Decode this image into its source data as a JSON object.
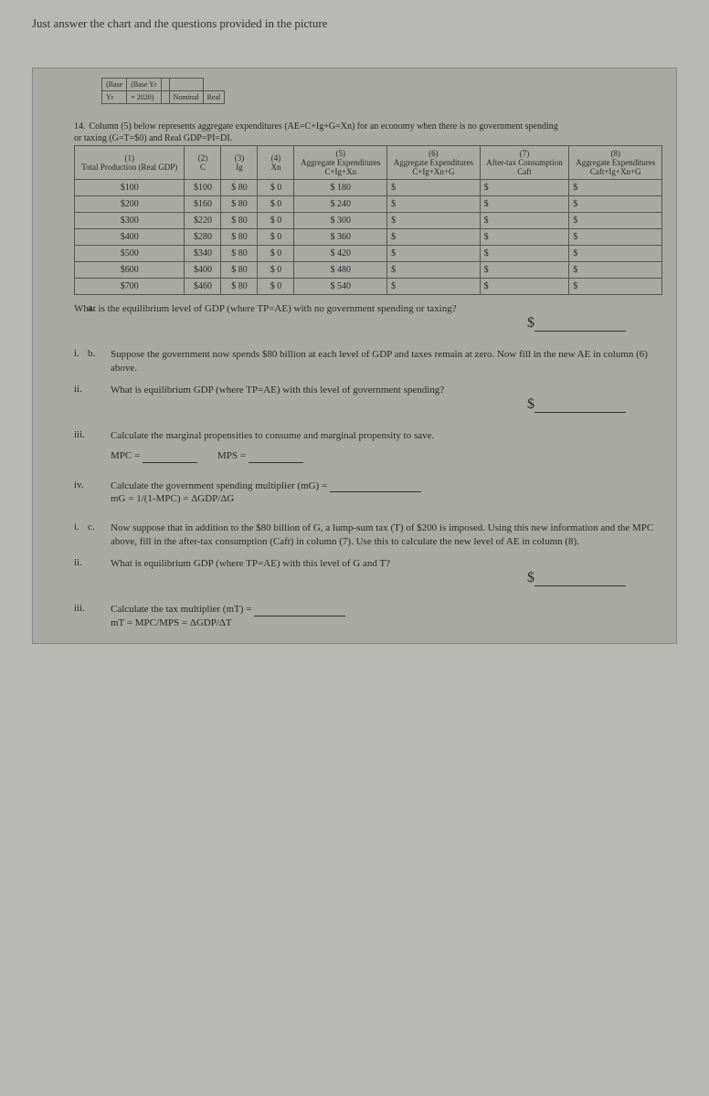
{
  "intro_text": "Just answer the chart and the questions provided in the picture",
  "top_mini": {
    "h1": "(Base",
    "h2": "(Base Yr",
    "r1a": "Yr",
    "r1b": "= 2020)",
    "r2a": "Nominal",
    "r2b": "Real"
  },
  "caption_num": "14.",
  "caption_line1": "Column (5) below represents aggregate expenditures (AE=C+Ig+G=Xn) for an economy when there is no government spending",
  "caption_line2": "or taxing (G=T=$0) and Real GDP=PI=DI.",
  "headers": {
    "c1a": "(1)",
    "c1b": "Total Production (Real GDP)",
    "c2a": "(2)",
    "c2b": "C",
    "c3a": "(3)",
    "c3b": "Ig",
    "c4a": "(4)",
    "c4b": "Xn",
    "c5a": "(5)",
    "c5b": "Aggregate Expenditures",
    "c5c": "C+Ig+Xn",
    "c6a": "(6)",
    "c6b": "Aggregate Expenditures",
    "c6c": "C+Ig+Xn+G",
    "c7a": "(7)",
    "c7b": "After-tax Consumption",
    "c7c": "Caft",
    "c8a": "(8)",
    "c8b": "Aggregate Expenditures",
    "c8c": "Caft+Ig+Xn+G"
  },
  "rows": [
    {
      "gdp": "$100",
      "c": "$100",
      "ig": "$ 80",
      "xn": "$ 0",
      "ae": "$ 180"
    },
    {
      "gdp": "$200",
      "c": "$160",
      "ig": "$ 80",
      "xn": "$ 0",
      "ae": "$ 240"
    },
    {
      "gdp": "$300",
      "c": "$220",
      "ig": "$ 80",
      "xn": "$ 0",
      "ae": "$ 300"
    },
    {
      "gdp": "$400",
      "c": "$280",
      "ig": "$ 80",
      "xn": "$ 0",
      "ae": "$ 360"
    },
    {
      "gdp": "$500",
      "c": "$340",
      "ig": "$ 80",
      "xn": "$ 0",
      "ae": "$ 420"
    },
    {
      "gdp": "$600",
      "c": "$400",
      "ig": "$ 80",
      "xn": "$ 0",
      "ae": "$ 480"
    },
    {
      "gdp": "$700",
      "c": "$460",
      "ig": "$ 80",
      "xn": "$ 0",
      "ae": "$ 540"
    }
  ],
  "qa_text": "What is the equilibrium level of GDP (where TP=AE) with no government spending or taxing?",
  "dollar": "$",
  "qb_i_text": "Suppose the government now spends $80 billion at each level of GDP and taxes remain at zero. Now fill in the new AE in column (6) above.",
  "qb_ii_text": "What is equilibrium GDP (where TP=AE) with this level of government spending?",
  "qb_iii_text": "Calculate the marginal propensities to consume and marginal propensity to save.",
  "mpc_label": "MPC =",
  "mps_label": "MPS =",
  "qb_iv_text": "Calculate the government spending multiplier (mG) =",
  "qb_iv_formula": "mG = 1/(1-MPC) = ΔGDP/ΔG",
  "qc_i_text": "Now suppose that in addition to the $80 billion of G, a lump-sum tax (T) of $200 is imposed. Using this new information and the MPC above, fill in the after-tax consumption (Caft) in column (7). Use this to calculate the new level of AE in column (8).",
  "qc_ii_text": "What is equilibrium GDP (where TP=AE) with this level of G and T?",
  "qc_iii_text": "Calculate the tax multiplier (mT) =",
  "qc_iii_formula": "mT = MPC/MPS = ΔGDP/ΔT",
  "labels": {
    "a": "a.",
    "b": "b.",
    "c": "c.",
    "i": "i.",
    "ii": "ii.",
    "iii": "iii.",
    "iv": "iv."
  }
}
